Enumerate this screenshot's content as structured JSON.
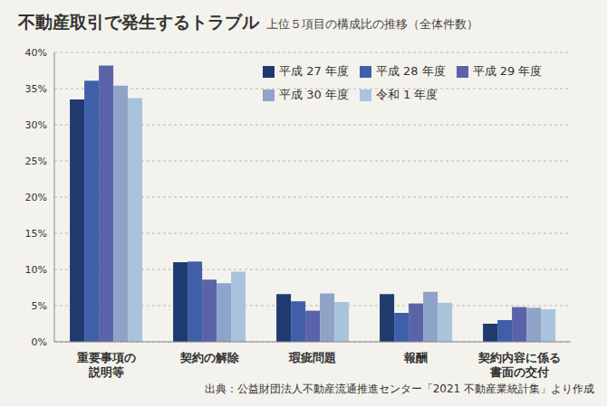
{
  "chart_data": {
    "type": "bar",
    "title": "不動産取引で発生するトラブル",
    "subtitle": "上位５項目の構成比の推移（全体件数）",
    "source": "出典：公益財団法人不動産流通推進センター「2021 不動産業統計集」より作成",
    "categories": [
      "重要事項の\n説明等",
      "契約の解除",
      "瑕疵問題",
      "報酬",
      "契約内容に係る\n書面の交付"
    ],
    "series": [
      {
        "name": "平成 27 年度",
        "color": "#1f3a6e",
        "values": [
          33.5,
          11.0,
          6.6,
          6.6,
          2.5
        ]
      },
      {
        "name": "平成 28 年度",
        "color": "#3f5fa8",
        "values": [
          36.1,
          11.1,
          5.6,
          4.0,
          3.0
        ]
      },
      {
        "name": "平成 29 年度",
        "color": "#5b63a8",
        "values": [
          38.2,
          8.6,
          4.3,
          5.3,
          4.8
        ]
      },
      {
        "name": "平成 30 年度",
        "color": "#8fa3c8",
        "values": [
          35.4,
          8.1,
          6.7,
          6.9,
          4.7
        ]
      },
      {
        "name": "令和 1 年度",
        "color": "#a9c3dc",
        "values": [
          33.7,
          9.7,
          5.5,
          5.4,
          4.5
        ]
      }
    ],
    "ylim": [
      0,
      40
    ],
    "yticks": [
      {
        "value": 0,
        "label": "0%"
      },
      {
        "value": 5,
        "label": "5%"
      },
      {
        "value": 10,
        "label": "10%"
      },
      {
        "value": 15,
        "label": "15%"
      },
      {
        "value": 20,
        "label": "20%"
      },
      {
        "value": 25,
        "label": "25%"
      },
      {
        "value": 30,
        "label": "30%"
      },
      {
        "value": 35,
        "label": "35%"
      },
      {
        "value": 40,
        "label": "40%"
      }
    ],
    "grid": true,
    "legend": "upper right"
  }
}
